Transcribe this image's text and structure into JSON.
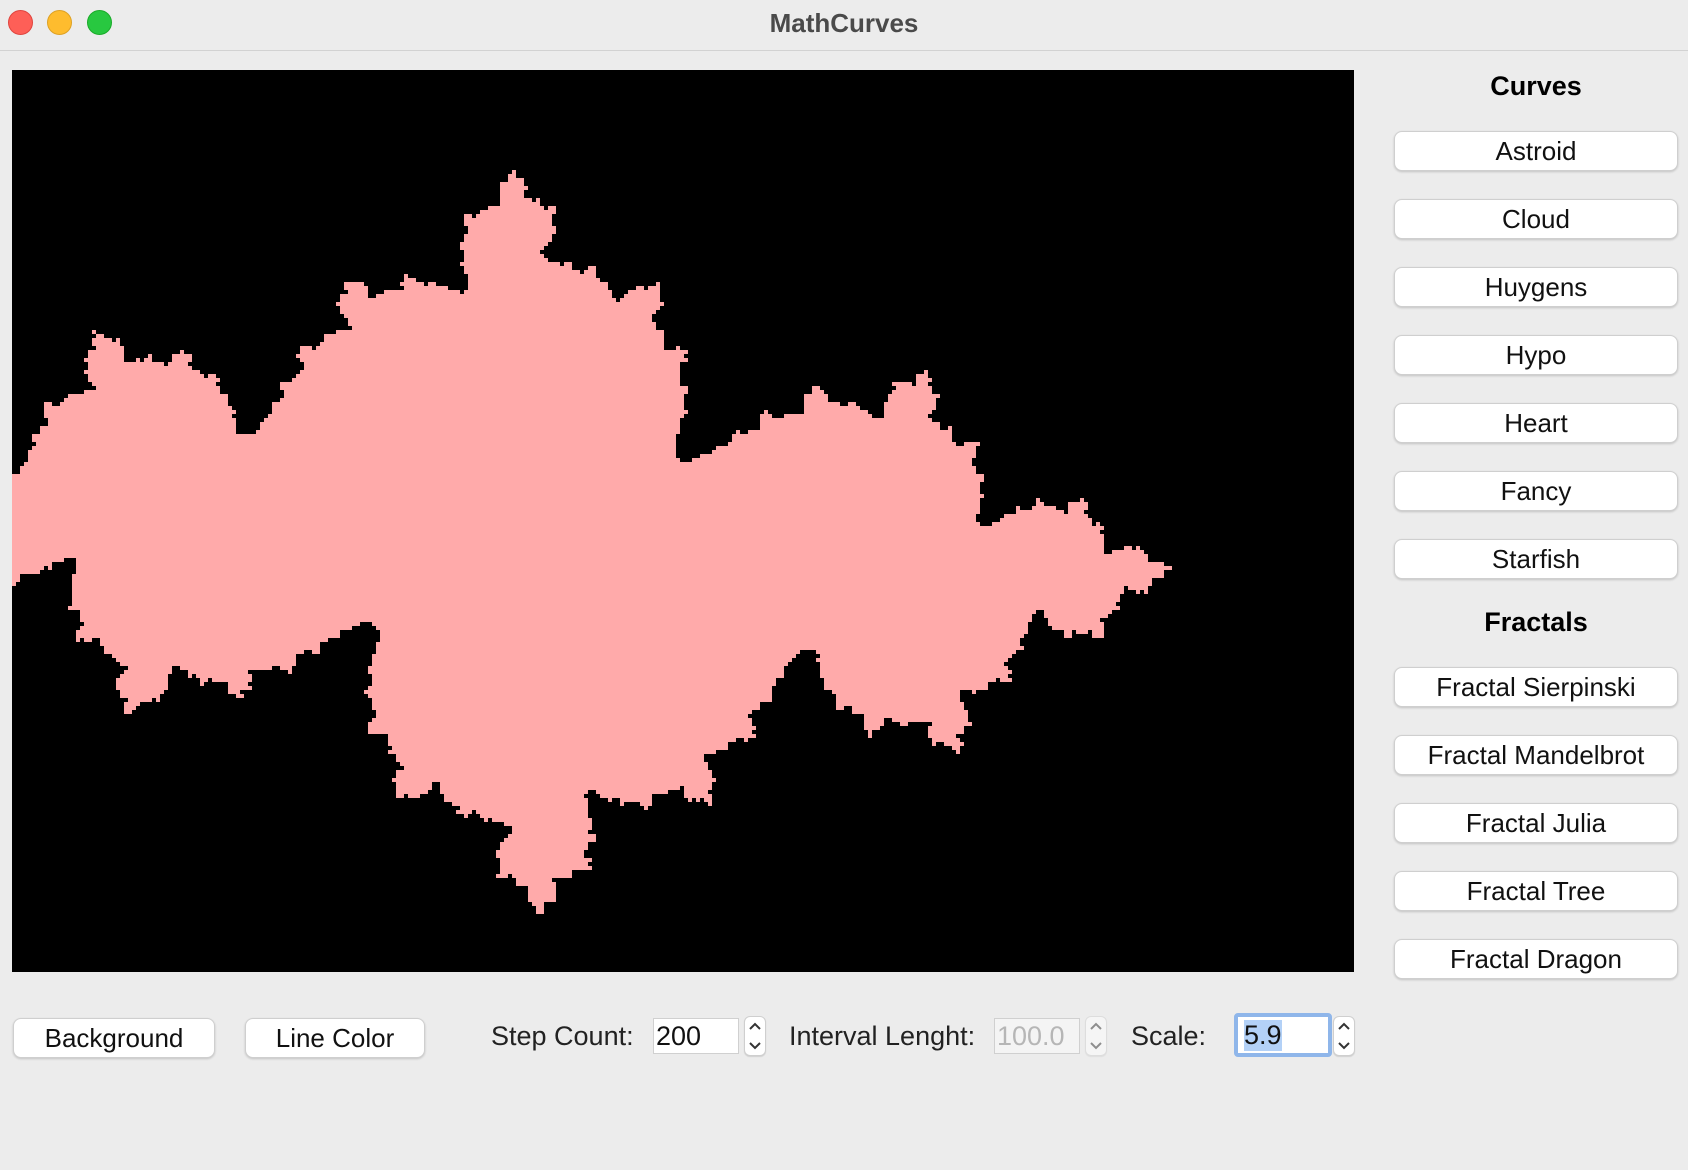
{
  "window": {
    "title": "MathCurves"
  },
  "canvas": {
    "background": "#000000",
    "line_color": "#ffaaaa",
    "fractal": "julia"
  },
  "sidebar": {
    "curves_heading": "Curves",
    "curves": [
      {
        "label": "Astroid"
      },
      {
        "label": "Cloud"
      },
      {
        "label": "Huygens"
      },
      {
        "label": "Hypo"
      },
      {
        "label": "Heart"
      },
      {
        "label": "Fancy"
      },
      {
        "label": "Starfish"
      }
    ],
    "fractals_heading": "Fractals",
    "fractals": [
      {
        "label": "Fractal Sierpinski"
      },
      {
        "label": "Fractal Mandelbrot"
      },
      {
        "label": "Fractal Julia"
      },
      {
        "label": "Fractal Tree"
      },
      {
        "label": "Fractal Dragon"
      }
    ]
  },
  "controls": {
    "background_label": "Background",
    "line_color_label": "Line Color",
    "step_count_label": "Step Count:",
    "step_count_value": "200",
    "interval_label": "Interval Lenght:",
    "interval_value": "100.0",
    "scale_label": "Scale:",
    "scale_value": "5.9"
  }
}
